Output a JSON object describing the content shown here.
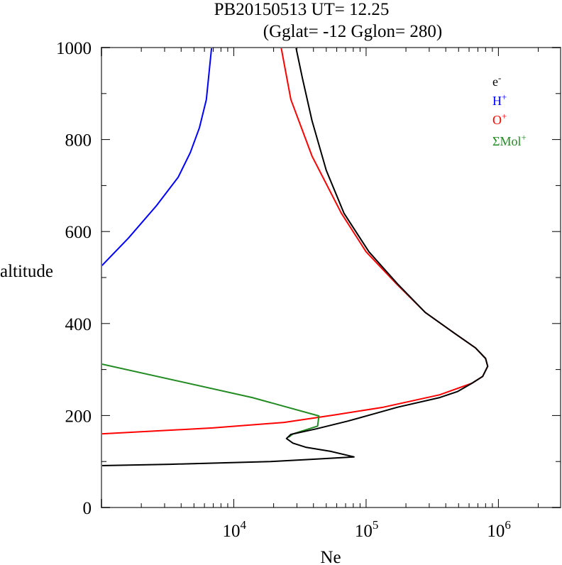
{
  "chart_data": {
    "type": "line",
    "title": "PB20150513   UT=  12.25",
    "subtitle": "(Gglat= -12   Gglon=  280)",
    "xlabel": "Ne",
    "ylabel": "altitude",
    "xscale": "log",
    "xlim": [
      1000,
      2950000
    ],
    "ylim": [
      0,
      1000
    ],
    "grid": false,
    "legend_position": "top-right",
    "x_tick_labels": [
      {
        "value": 10000,
        "base": "10",
        "exp": "4"
      },
      {
        "value": 100000,
        "base": "10",
        "exp": "5"
      },
      {
        "value": 1000000,
        "base": "10",
        "exp": "6"
      }
    ],
    "y_ticks": [
      0,
      200,
      400,
      600,
      800,
      1000
    ],
    "y_tick_labels": [
      "0",
      "200",
      "400",
      "600",
      "800",
      "1000"
    ],
    "series": [
      {
        "name": "e-",
        "label_base": "e",
        "label_sup": "-",
        "color": "#000000",
        "points": [
          [
            1000,
            91
          ],
          [
            3300,
            94
          ],
          [
            19000,
            100
          ],
          [
            40000,
            105
          ],
          [
            81000,
            110
          ],
          [
            54000,
            122
          ],
          [
            35000,
            131
          ],
          [
            28000,
            140
          ],
          [
            25000,
            150
          ],
          [
            27000,
            159
          ],
          [
            42000,
            171
          ],
          [
            73000,
            188
          ],
          [
            106000,
            201
          ],
          [
            173000,
            218
          ],
          [
            360000,
            239
          ],
          [
            490000,
            252
          ],
          [
            630000,
            270
          ],
          [
            760000,
            285
          ],
          [
            830000,
            307
          ],
          [
            800000,
            324
          ],
          [
            670000,
            347
          ],
          [
            470000,
            378
          ],
          [
            280000,
            424
          ],
          [
            173000,
            486
          ],
          [
            105000,
            556
          ],
          [
            68000,
            640
          ],
          [
            50000,
            733
          ],
          [
            39000,
            841
          ],
          [
            33000,
            934
          ],
          [
            29500,
            1000
          ]
        ]
      },
      {
        "name": "H+",
        "label_base": "H",
        "label_sup": "+",
        "color": "#0000ff",
        "points": [
          [
            1000,
            525
          ],
          [
            1600,
            586
          ],
          [
            2600,
            656
          ],
          [
            3800,
            718
          ],
          [
            4700,
            772
          ],
          [
            5500,
            826
          ],
          [
            6200,
            887
          ],
          [
            6800,
            1000
          ]
        ]
      },
      {
        "name": "O+",
        "label_base": "O",
        "label_sup": "+",
        "color": "#ff0000",
        "points": [
          [
            1000,
            160
          ],
          [
            6900,
            173
          ],
          [
            24000,
            185
          ],
          [
            57000,
            201
          ],
          [
            135000,
            218
          ],
          [
            360000,
            245
          ],
          [
            630000,
            270
          ],
          [
            760000,
            285
          ],
          [
            830000,
            307
          ],
          [
            800000,
            324
          ],
          [
            670000,
            347
          ],
          [
            470000,
            378
          ],
          [
            280000,
            424
          ],
          [
            170000,
            486
          ],
          [
            100000,
            556
          ],
          [
            65000,
            640
          ],
          [
            39000,
            764
          ],
          [
            27000,
            887
          ],
          [
            22800,
            1000
          ]
        ]
      },
      {
        "name": "ΣMol+",
        "label_base": "ΣMol",
        "label_sup": "+",
        "color": "#228b22",
        "points": [
          [
            1000,
            312
          ],
          [
            13800,
            239
          ],
          [
            44000,
            199
          ],
          [
            43000,
            177
          ],
          [
            28000,
            160
          ],
          [
            26000,
            153
          ]
        ]
      }
    ]
  }
}
